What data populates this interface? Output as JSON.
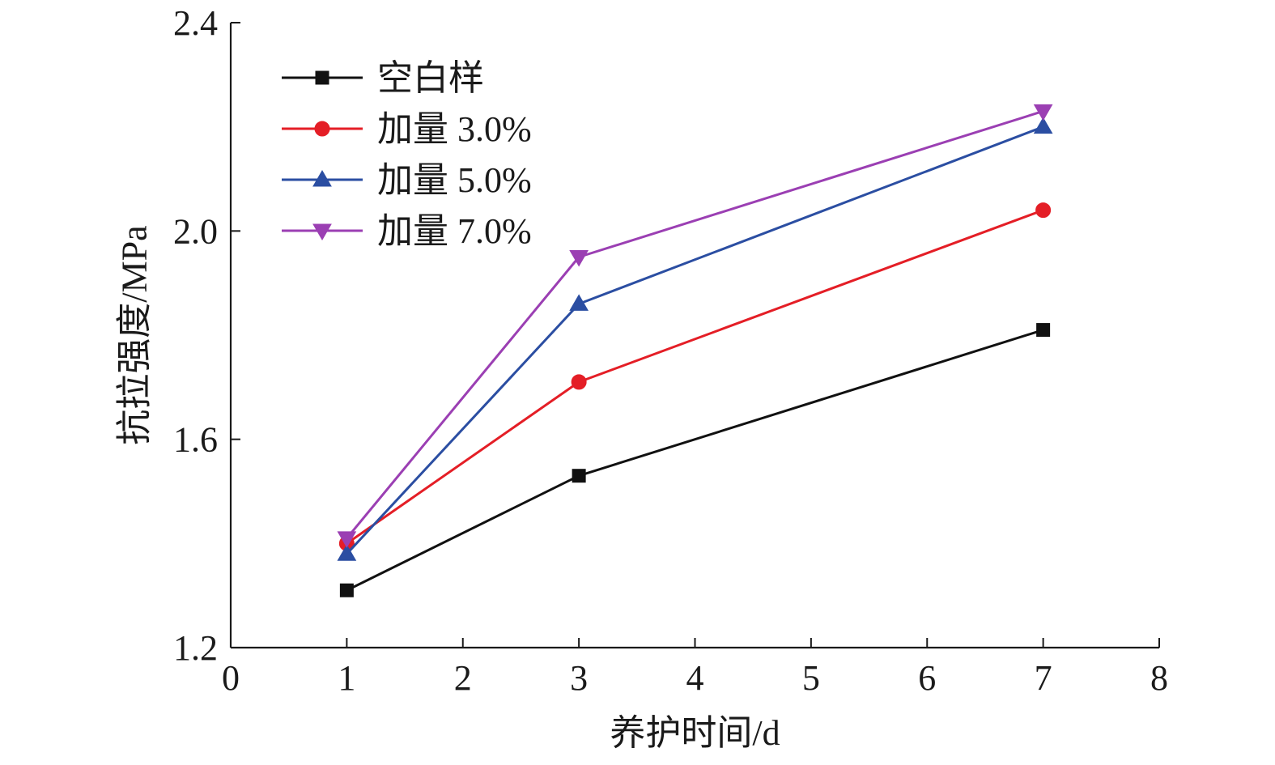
{
  "chart_data": {
    "type": "line",
    "title": "",
    "xlabel": "养护时间/d",
    "ylabel": "抗拉强度/MPa",
    "xlim": [
      0,
      8
    ],
    "ylim": [
      1.2,
      2.4
    ],
    "xticks": [
      "0",
      "1",
      "2",
      "3",
      "4",
      "5",
      "6",
      "7",
      "8"
    ],
    "yticks": [
      "1.2",
      "1.6",
      "2.0",
      "2.4"
    ],
    "x": [
      1,
      3,
      7
    ],
    "grid": false,
    "legend_position": "top-left",
    "series": [
      {
        "name": "空白样",
        "values": [
          1.31,
          1.53,
          1.81
        ],
        "color": "#111111",
        "marker": "square"
      },
      {
        "name": "加量 3.0%",
        "values": [
          1.4,
          1.71,
          2.04
        ],
        "color": "#e41e26",
        "marker": "circle"
      },
      {
        "name": "加量 5.0%",
        "values": [
          1.38,
          1.86,
          2.2
        ],
        "color": "#2b4ea2",
        "marker": "triangle-up"
      },
      {
        "name": "加量 7.0%",
        "values": [
          1.41,
          1.95,
          2.23
        ],
        "color": "#9b3fb3",
        "marker": "triangle-down"
      }
    ]
  }
}
